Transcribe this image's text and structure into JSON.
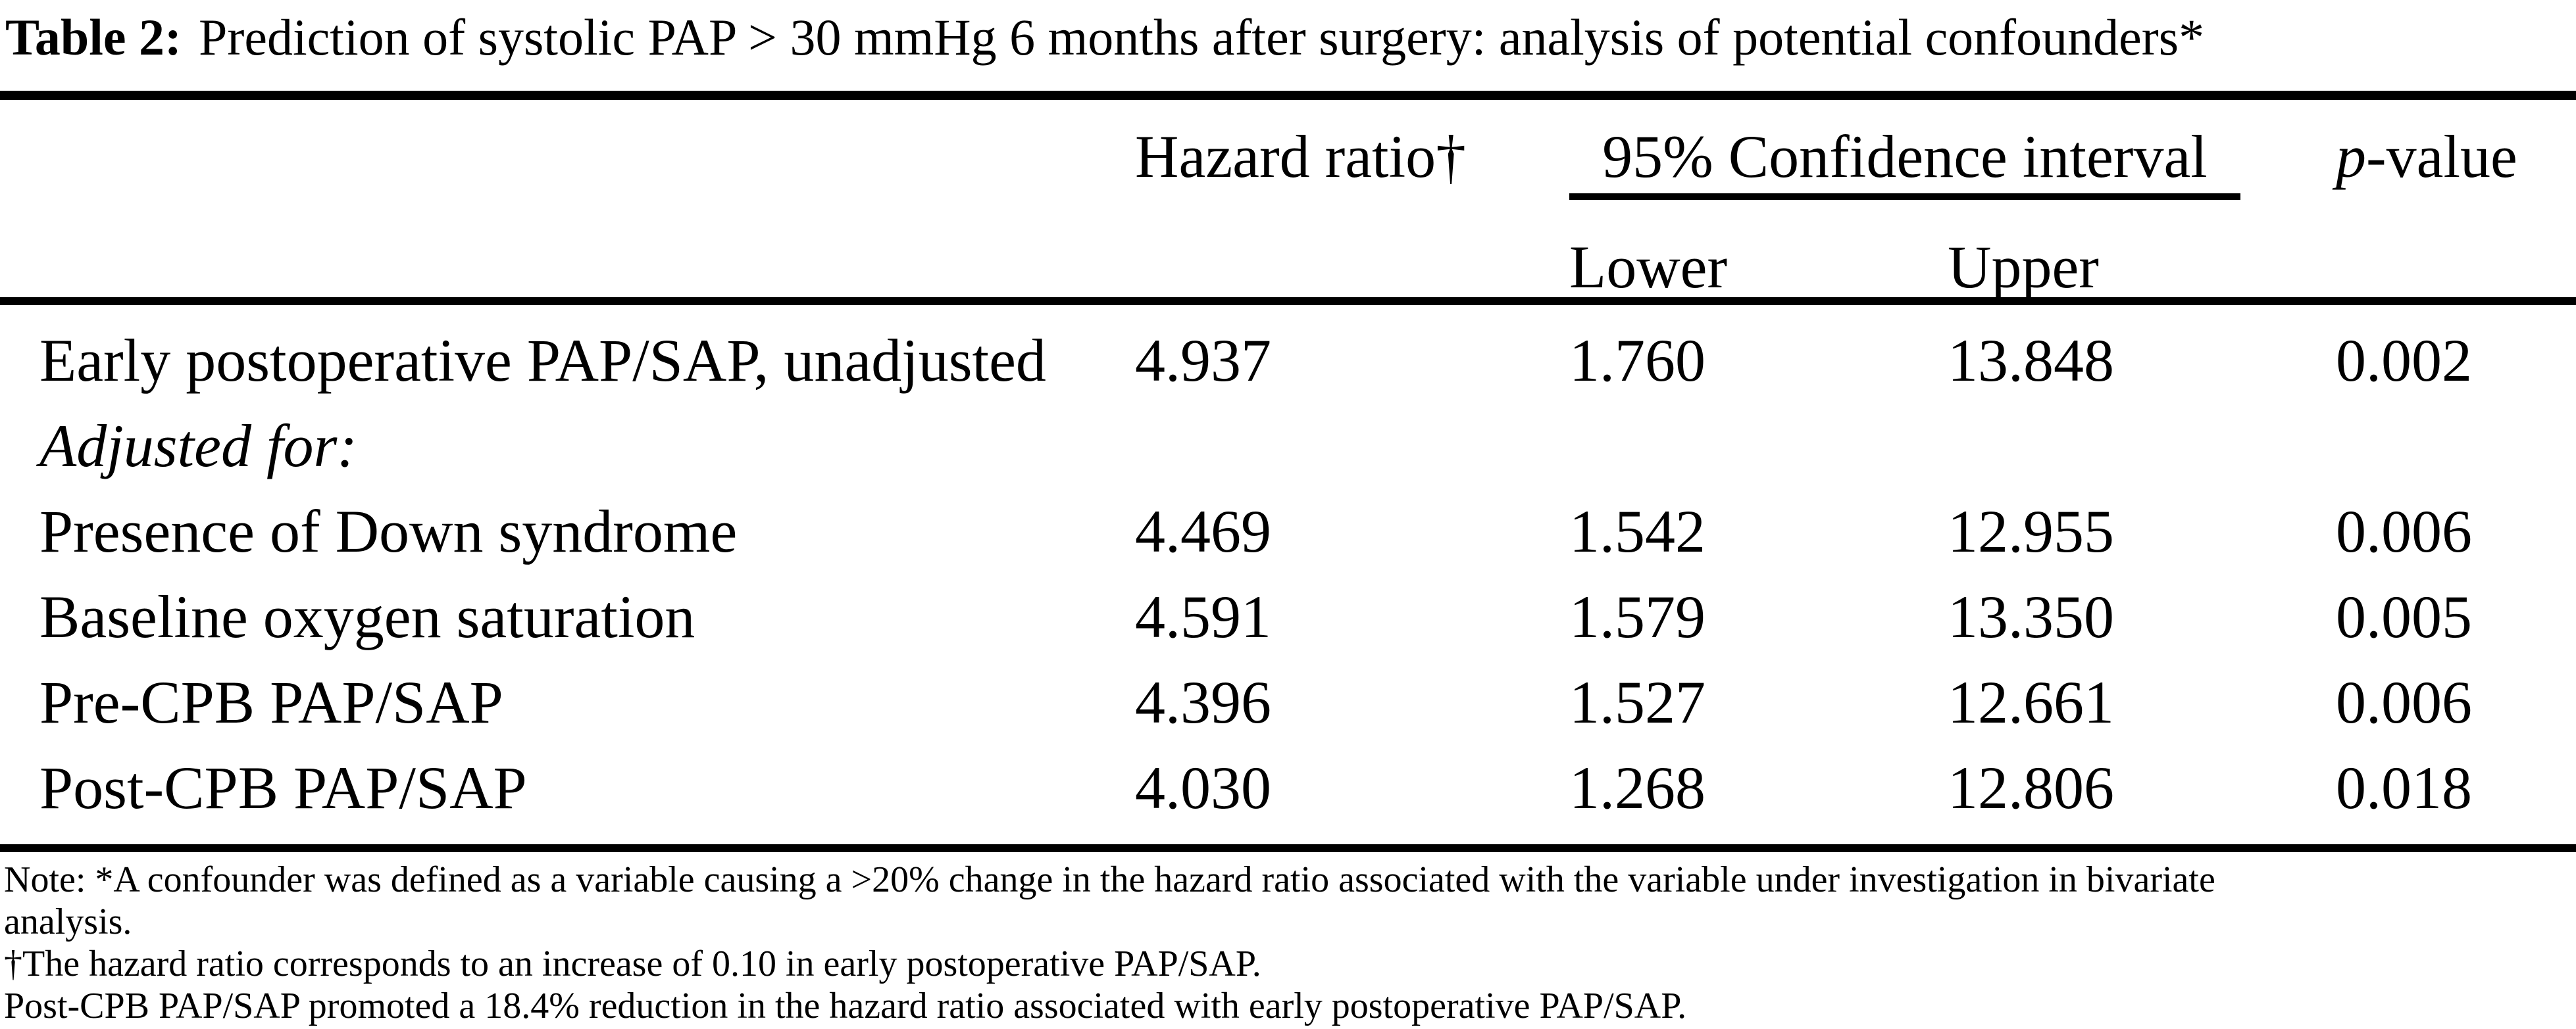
{
  "title": {
    "label": "Table 2:",
    "text": "Prediction of systolic PAP > 30 mmHg 6 months after surgery: analysis of potential confounders*"
  },
  "header": {
    "hazard_ratio": "Hazard ratio†",
    "ci": "95% Confidence interval",
    "ci_lower": "Lower",
    "ci_upper": "Upper",
    "p_italic": "p",
    "p_rest": "-value"
  },
  "rows": [
    {
      "label": "Early postoperative PAP/SAP, unadjusted",
      "hr": "4.937",
      "lower": "1.760",
      "upper": "13.848",
      "p": "0.002"
    },
    {
      "label": "Adjusted for:",
      "hr": "",
      "lower": "",
      "upper": "",
      "p": ""
    },
    {
      "label": "Presence of Down syndrome",
      "hr": "4.469",
      "lower": "1.542",
      "upper": "12.955",
      "p": "0.006"
    },
    {
      "label": "Baseline oxygen saturation",
      "hr": "4.591",
      "lower": "1.579",
      "upper": "13.350",
      "p": "0.005"
    },
    {
      "label": "Pre-CPB PAP/SAP",
      "hr": "4.396",
      "lower": "1.527",
      "upper": "12.661",
      "p": "0.006"
    },
    {
      "label": "Post-CPB PAP/SAP",
      "hr": "4.030",
      "lower": "1.268",
      "upper": "12.806",
      "p": "0.018"
    }
  ],
  "footnotes": {
    "lines": [
      "Note: *A confounder was defined as a variable causing a >20% change in the hazard ratio associated with the variable under investigation in bivariate",
      "analysis.",
      "†The hazard ratio corresponds to an increase of 0.10 in early postoperative PAP/SAP.",
      "Post-CPB PAP/SAP promoted a 18.4% reduction in the hazard ratio associated with early postoperative PAP/SAP."
    ]
  }
}
